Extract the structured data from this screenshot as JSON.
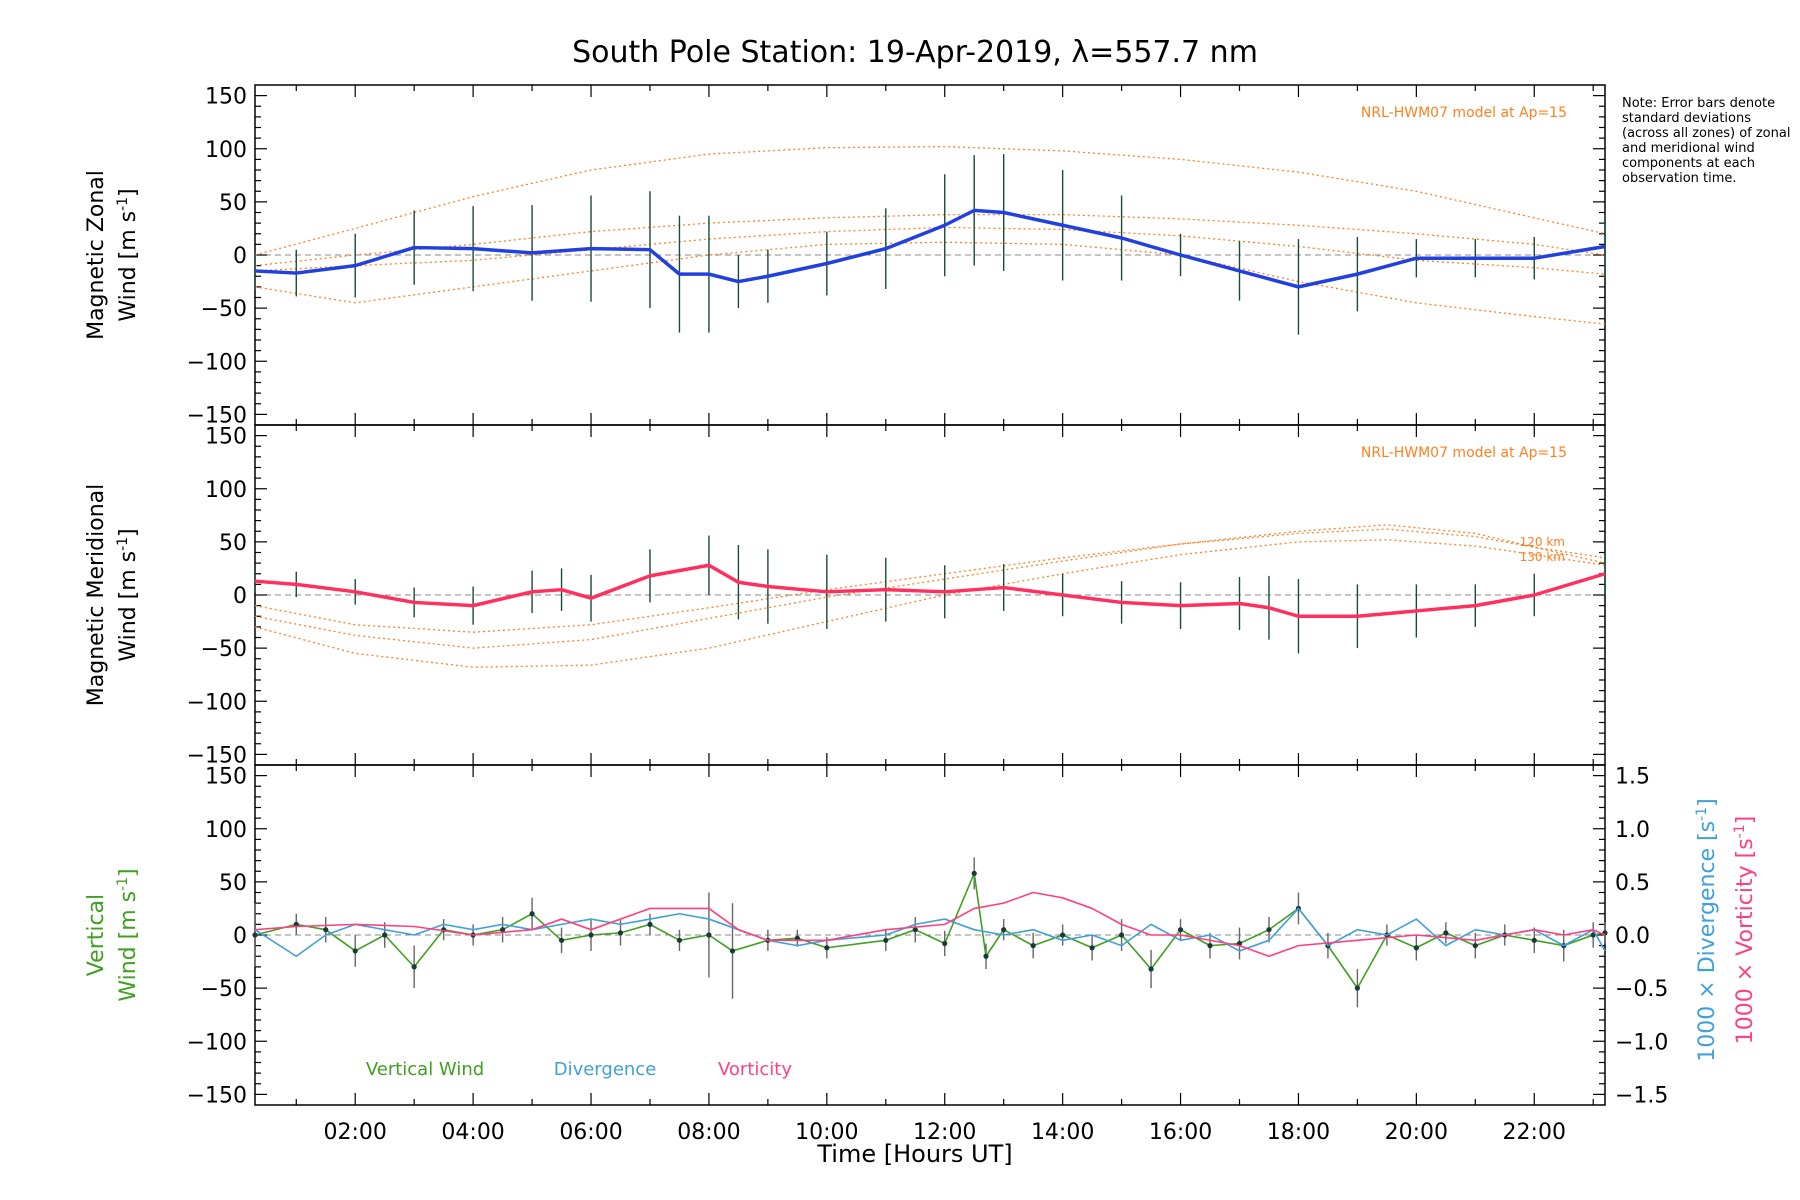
{
  "chart_data": {
    "type": "line",
    "title": "South Pole Station: 19-Apr-2019, λ=557.7 nm",
    "xlabel": "Time [Hours UT]",
    "xlim": [
      0.3,
      23.2
    ],
    "x_ticks": [
      2,
      4,
      6,
      8,
      10,
      12,
      14,
      16,
      18,
      20,
      22
    ],
    "x_tick_labels": [
      "02:00",
      "04:00",
      "06:00",
      "08:00",
      "10:00",
      "12:00",
      "14:00",
      "16:00",
      "18:00",
      "20:00",
      "22:00"
    ],
    "note": "Note: Error bars denote standard deviations (across all zones) of zonal and meridional wind components at each observation time.",
    "panels": [
      {
        "id": "zonal",
        "ylabel": [
          "Magnetic Zonal",
          "Wind [m s",
          "-1",
          "]"
        ],
        "ylim": [
          -160,
          160
        ],
        "y_ticks": [
          150,
          100,
          50,
          0,
          -50,
          -100,
          -150
        ],
        "y_tick_labels": [
          "150",
          "100",
          "50",
          "0",
          "−50",
          "−100",
          "−150"
        ],
        "model_label": "NRL-HWM07 model at Ap=15",
        "series": [
          {
            "name": "Magnetic Zonal Wind",
            "color": "#2040e0",
            "x": [
              0.3,
              1,
              2,
              3,
              4,
              5,
              6,
              7,
              7.5,
              8,
              8.5,
              9,
              10,
              11,
              12,
              12.5,
              13,
              14,
              15,
              16,
              17,
              18,
              19,
              20,
              21,
              22,
              23.2
            ],
            "y": [
              -15,
              -17,
              -10,
              7,
              6,
              2,
              6,
              5,
              -18,
              -18,
              -25,
              -20,
              -8,
              6,
              28,
              42,
              40,
              28,
              16,
              0,
              -15,
              -30,
              -18,
              -3,
              -3,
              -3,
              8
            ],
            "err": [
              18,
              22,
              30,
              35,
              40,
              45,
              50,
              55,
              55,
              55,
              25,
              25,
              30,
              38,
              48,
              52,
              55,
              52,
              40,
              20,
              28,
              45,
              35,
              18,
              18,
              20,
              30
            ]
          }
        ],
        "model_curves": [
          {
            "x": [
              0.3,
              2,
              4,
              6,
              8,
              10,
              12,
              14,
              16,
              18,
              20,
              22,
              23.2
            ],
            "y": [
              0,
              25,
              55,
              80,
              95,
              101,
              102,
              98,
              90,
              78,
              60,
              35,
              20
            ]
          },
          {
            "x": [
              0.3,
              2,
              4,
              6,
              8,
              10,
              12,
              14,
              16,
              18,
              20,
              22,
              23.2
            ],
            "y": [
              -10,
              0,
              10,
              22,
              30,
              35,
              38,
              38,
              34,
              28,
              20,
              10,
              0
            ]
          },
          {
            "x": [
              0.3,
              2,
              4,
              6,
              8,
              10,
              12,
              14,
              16,
              18,
              20,
              22,
              23.2
            ],
            "y": [
              -15,
              -10,
              -5,
              5,
              15,
              22,
              26,
              24,
              18,
              8,
              -5,
              -12,
              -18
            ]
          },
          {
            "x": [
              0.3,
              2,
              4,
              6,
              8,
              10,
              12,
              14,
              16,
              18,
              20,
              22,
              23.2
            ],
            "y": [
              -30,
              -45,
              -30,
              -15,
              0,
              10,
              12,
              10,
              0,
              -25,
              -45,
              -58,
              -65
            ]
          }
        ]
      },
      {
        "id": "meridional",
        "ylabel": [
          "Magnetic Meridional",
          "Wind [m s",
          "-1",
          "]"
        ],
        "ylim": [
          -160,
          160
        ],
        "y_ticks": [
          150,
          100,
          50,
          0,
          -50,
          -100,
          -150
        ],
        "y_tick_labels": [
          "150",
          "100",
          "50",
          "0",
          "−50",
          "−100",
          "−150"
        ],
        "model_label": "NRL-HWM07 model at Ap=15",
        "model_alt_labels": [
          "120 km",
          "130 km"
        ],
        "series": [
          {
            "name": "Magnetic Meridional Wind",
            "color": "#ff3060",
            "x": [
              0.3,
              1,
              2,
              3,
              4,
              5,
              5.5,
              6,
              7,
              8,
              8.5,
              9,
              10,
              11,
              12,
              13,
              14,
              15,
              16,
              17,
              17.5,
              18,
              19,
              20,
              21,
              22,
              23.2
            ],
            "y": [
              13,
              10,
              3,
              -7,
              -10,
              3,
              5,
              -3,
              18,
              28,
              12,
              8,
              3,
              5,
              3,
              7,
              0,
              -7,
              -10,
              -8,
              -12,
              -20,
              -20,
              -15,
              -10,
              0,
              20
            ],
            "err": [
              10,
              12,
              12,
              14,
              18,
              20,
              20,
              22,
              25,
              28,
              35,
              35,
              35,
              30,
              25,
              22,
              20,
              20,
              22,
              25,
              30,
              35,
              30,
              25,
              20,
              20,
              20
            ]
          }
        ],
        "model_curves": [
          {
            "x": [
              0.3,
              2,
              4,
              6,
              8,
              10,
              12,
              14,
              16,
              18,
              19.5,
              21,
              22,
              23.2
            ],
            "y": [
              -10,
              -28,
              -35,
              -28,
              -12,
              5,
              20,
              35,
              48,
              58,
              62,
              55,
              45,
              35
            ]
          },
          {
            "x": [
              0.3,
              2,
              4,
              6,
              8,
              10,
              12,
              14,
              16,
              18,
              19.5,
              21,
              22,
              23.2
            ],
            "y": [
              -20,
              -38,
              -50,
              -42,
              -22,
              -2,
              15,
              32,
              48,
              60,
              66,
              58,
              45,
              30
            ]
          },
          {
            "x": [
              0.3,
              2,
              4,
              6,
              8,
              10,
              12,
              14,
              16,
              18,
              19.5,
              21,
              22,
              23.2
            ],
            "y": [
              -30,
              -55,
              -68,
              -66,
              -50,
              -25,
              0,
              20,
              38,
              50,
              52,
              46,
              38,
              28
            ]
          }
        ]
      },
      {
        "id": "vertical",
        "ylabel_left": [
          "Vertical",
          "Wind [m s",
          "-1",
          "]"
        ],
        "ylim": [
          -160,
          160
        ],
        "y_ticks": [
          150,
          100,
          50,
          0,
          -50,
          -100,
          -150
        ],
        "y_tick_labels": [
          "150",
          "100",
          "50",
          "0",
          "−50",
          "−100",
          "−150"
        ],
        "y2lim": [
          -1.6,
          1.6
        ],
        "y2_ticks": [
          1.5,
          1.0,
          0.5,
          0.0,
          -0.5,
          -1.0,
          -1.5
        ],
        "y2_tick_labels": [
          "1.5",
          "1.0",
          "0.5",
          "0.0",
          "−0.5",
          "−1.0",
          "−1.5"
        ],
        "y2label_divergence": [
          "1000 × Divergence [s",
          "-1",
          "]"
        ],
        "y2label_vorticity": [
          "1000 × Vorticity [s",
          "-1",
          "]"
        ],
        "legend": [
          "Vertical Wind",
          "Divergence",
          "Vorticity"
        ],
        "series": [
          {
            "name": "Vertical Wind",
            "color": "#40a020",
            "axis": "left",
            "x": [
              0.3,
              1,
              1.5,
              2,
              2.5,
              3,
              3.5,
              4,
              4.5,
              5,
              5.5,
              6,
              6.5,
              7,
              7.5,
              8,
              8.4,
              9,
              9.5,
              10,
              11,
              11.5,
              12,
              12.5,
              12.7,
              13,
              13.5,
              14,
              14.5,
              15,
              15.5,
              16,
              16.5,
              17,
              17.5,
              18,
              18.5,
              19,
              19.5,
              20,
              20.5,
              21,
              21.5,
              22,
              22.5,
              23,
              23.2
            ],
            "y": [
              0,
              10,
              5,
              -15,
              0,
              -30,
              5,
              0,
              5,
              20,
              -5,
              0,
              2,
              10,
              -5,
              0,
              -15,
              -5,
              -3,
              -12,
              -5,
              5,
              -8,
              58,
              -20,
              5,
              -10,
              0,
              -12,
              0,
              -32,
              5,
              -10,
              -8,
              5,
              25,
              -10,
              -50,
              0,
              -12,
              2,
              -10,
              0,
              -5,
              -10,
              0,
              2
            ],
            "err": [
              30,
              10,
              12,
              15,
              12,
              20,
              10,
              10,
              12,
              15,
              12,
              15,
              12,
              10,
              10,
              40,
              45,
              10,
              8,
              10,
              10,
              12,
              12,
              15,
              12,
              10,
              12,
              10,
              12,
              15,
              18,
              10,
              12,
              15,
              12,
              15,
              12,
              18,
              10,
              12,
              10,
              12,
              10,
              12,
              15,
              12,
              10
            ]
          },
          {
            "name": "Divergence",
            "color": "#40a0d8",
            "axis": "right",
            "x": [
              0.3,
              1,
              1.5,
              2,
              2.5,
              3,
              3.5,
              4,
              4.5,
              5,
              5.5,
              6,
              6.5,
              7,
              7.5,
              8,
              8.5,
              9,
              9.5,
              10,
              11,
              11.5,
              12,
              12.5,
              13,
              13.5,
              14,
              14.5,
              15,
              15.5,
              16,
              16.5,
              17,
              17.5,
              18,
              18.5,
              19,
              19.5,
              20,
              20.5,
              21,
              21.5,
              22,
              22.5,
              23,
              23.2
            ],
            "y": [
              0.05,
              -0.2,
              0.0,
              0.1,
              0.05,
              0.0,
              0.1,
              0.05,
              0.1,
              0.05,
              0.1,
              0.15,
              0.1,
              0.15,
              0.2,
              0.15,
              0.05,
              -0.05,
              -0.1,
              -0.05,
              0.0,
              0.1,
              0.15,
              0.05,
              0.0,
              0.05,
              -0.05,
              0.0,
              -0.1,
              0.1,
              -0.05,
              0.0,
              -0.15,
              -0.05,
              0.25,
              -0.1,
              0.05,
              0.0,
              0.15,
              -0.1,
              0.05,
              0.0,
              0.05,
              -0.1,
              0.05,
              -0.15
            ]
          },
          {
            "name": "Vorticity",
            "color": "#ff4080",
            "axis": "right",
            "x": [
              0.3,
              1,
              2,
              3,
              4,
              5,
              5.5,
              6,
              7,
              8,
              8.5,
              9,
              10,
              11,
              12,
              12.5,
              13,
              13.5,
              14,
              14.5,
              15,
              15.5,
              16,
              17,
              17.5,
              18,
              19,
              20,
              21,
              22,
              22.5,
              23,
              23.2
            ],
            "y": [
              0.05,
              0.08,
              0.1,
              0.08,
              0.0,
              0.05,
              0.15,
              0.05,
              0.25,
              0.25,
              0.05,
              -0.05,
              -0.05,
              0.05,
              0.1,
              0.25,
              0.3,
              0.4,
              0.35,
              0.25,
              0.1,
              0.0,
              0.0,
              -0.1,
              -0.2,
              -0.1,
              -0.05,
              0.0,
              -0.05,
              0.05,
              0.0,
              0.05,
              0.0
            ]
          }
        ]
      }
    ]
  }
}
